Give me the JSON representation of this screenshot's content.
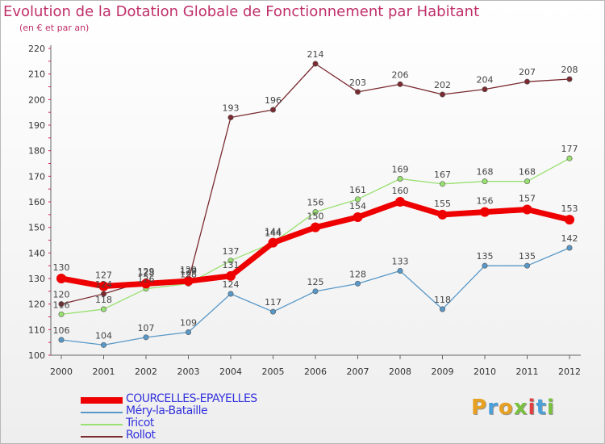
{
  "title": "Evolution de la Dotation Globale de Fonctionnement par Habitant",
  "subtitle": "(en € et par an)",
  "logo": {
    "text": "Proxiti",
    "colors": [
      "#e8a020",
      "#4aa0d8",
      "#e8a020",
      "#7ac040",
      "#e04040",
      "#4aa0d8",
      "#7ac040"
    ]
  },
  "chart_data": {
    "type": "line",
    "x": [
      "2000",
      "2001",
      "2002",
      "2003",
      "2004",
      "2005",
      "2006",
      "2007",
      "2008",
      "2009",
      "2010",
      "2011",
      "2012"
    ],
    "ylim": [
      100,
      220
    ],
    "yticks": [
      "100",
      "110",
      "120",
      "130",
      "140",
      "150",
      "160",
      "170",
      "180",
      "190",
      "200",
      "210",
      "220"
    ],
    "grid": false,
    "series": [
      {
        "name": "Rollot",
        "color": "#7a2a30",
        "values": [
          120,
          124,
          129,
          129,
          193,
          196,
          214,
          203,
          206,
          202,
          204,
          207,
          208
        ]
      },
      {
        "name": "Tricot",
        "color": "#98e070",
        "values": [
          116,
          118,
          126,
          128,
          137,
          144,
          156,
          161,
          169,
          167,
          168,
          168,
          177
        ]
      },
      {
        "name": "Méry-la-Bataille",
        "color": "#5898c8",
        "values": [
          106,
          104,
          107,
          109,
          124,
          117,
          125,
          128,
          133,
          118,
          135,
          135,
          142
        ]
      },
      {
        "name": "COURCELLES-EPAYELLES",
        "color": "#ee0000",
        "values": [
          130,
          127,
          128,
          129,
          131,
          144,
          150,
          154,
          160,
          155,
          156,
          157,
          153
        ]
      }
    ],
    "legend": [
      {
        "name": "COURCELLES-EPAYELLES",
        "color": "#ee0000",
        "text_color": "#3333dd"
      },
      {
        "name": "Méry-la-Bataille",
        "color": "#5898c8",
        "text_color": "#3333dd"
      },
      {
        "name": "Tricot",
        "color": "#98e070",
        "text_color": "#3333dd"
      },
      {
        "name": "Rollot",
        "color": "#7a2a30",
        "text_color": "#3333dd"
      }
    ]
  }
}
